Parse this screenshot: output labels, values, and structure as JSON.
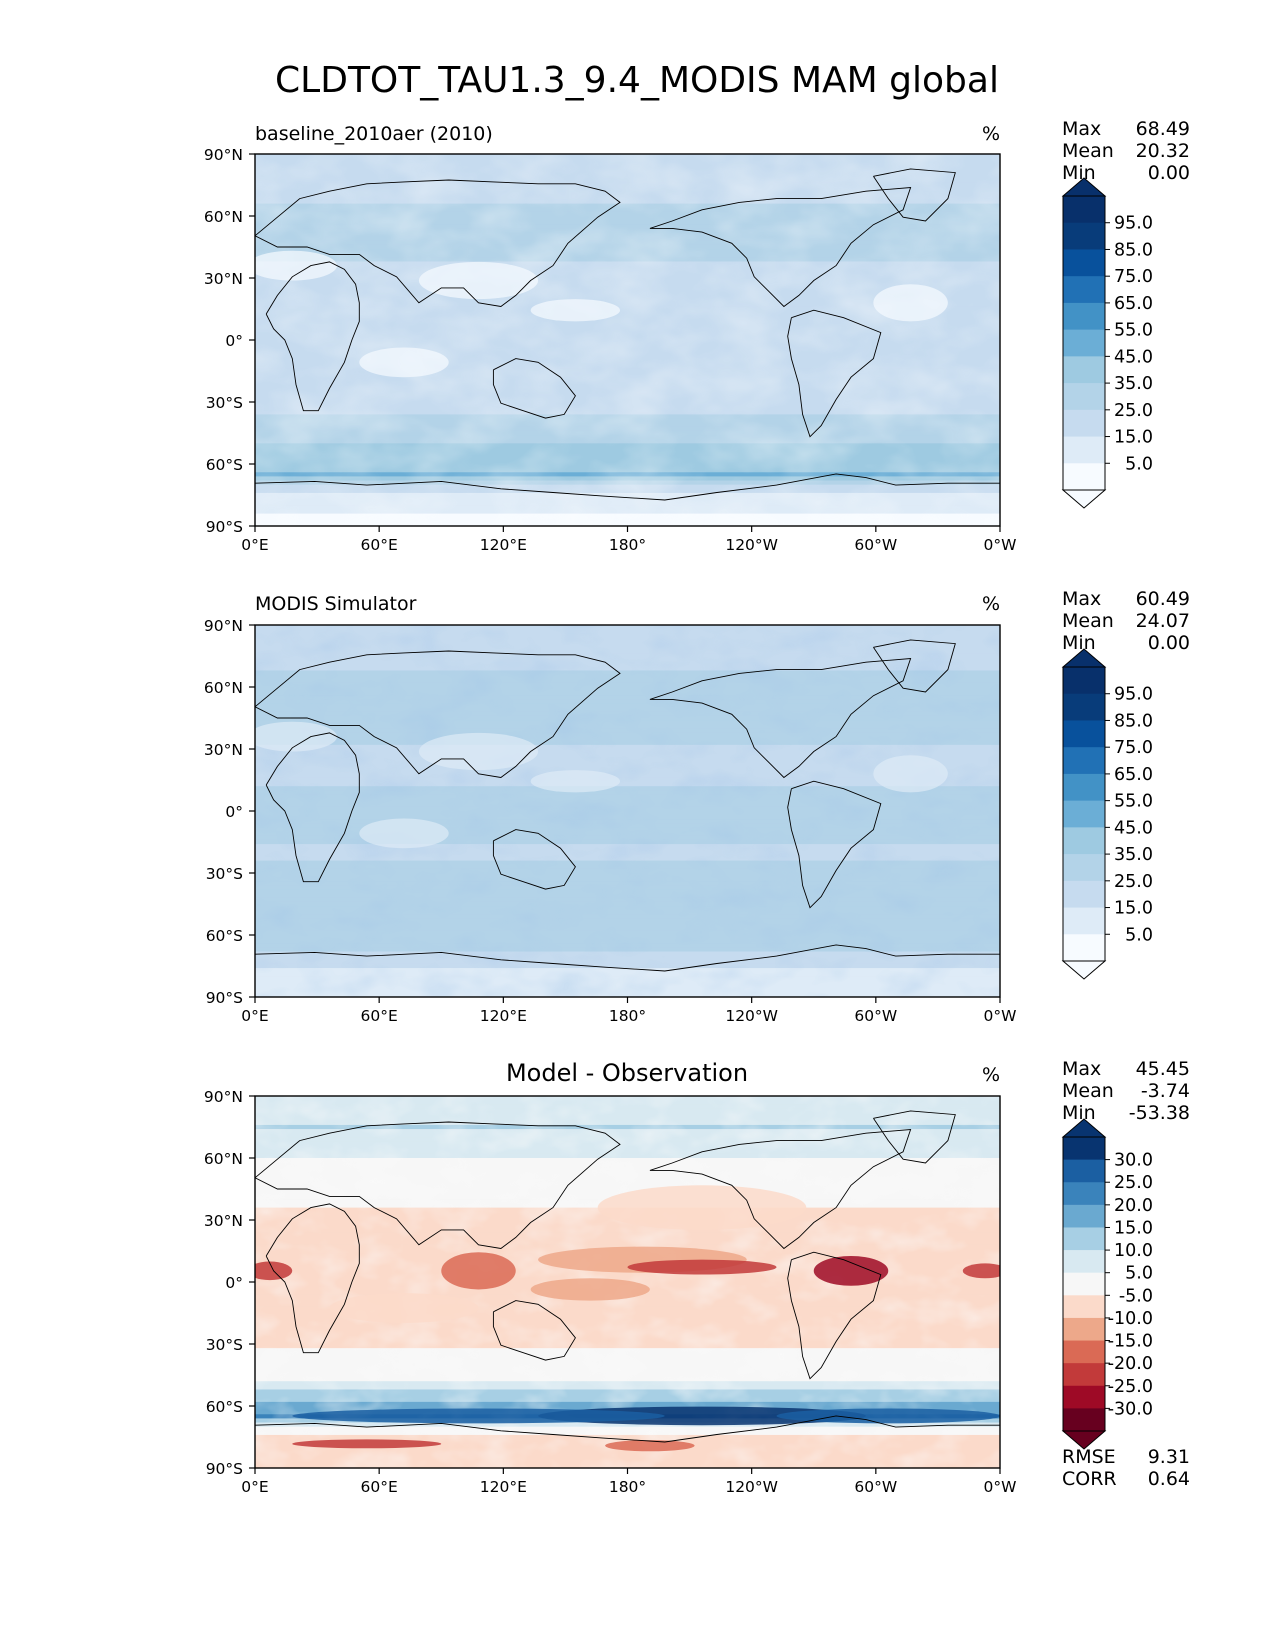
{
  "title": "CLDTOT_TAU1.3_9.4_MODIS MAM global",
  "colors": {
    "blues": [
      "#f7fbff",
      "#deebf7",
      "#c6dbef",
      "#b3d3e8",
      "#9ecae1",
      "#6baed6",
      "#4292c6",
      "#2171b5",
      "#08519c",
      "#083c7a",
      "#08306b"
    ],
    "rdbu": [
      "#67001f",
      "#9e0a26",
      "#c23a3a",
      "#da6a55",
      "#eda88a",
      "#fbdaca",
      "#f7f7f7",
      "#d8e9f1",
      "#a7cfe4",
      "#6aa9d0",
      "#3a83bb",
      "#1b5fa2",
      "#083470"
    ],
    "coast": "#000000",
    "frame": "#000000"
  },
  "chart_data": [
    {
      "type": "heatmap",
      "map": "global cylindrical",
      "title": "baseline_2010aer (2010)",
      "units": "%",
      "xticks": [
        "0°E",
        "60°E",
        "120°E",
        "180°",
        "120°W",
        "60°W",
        "0°W"
      ],
      "yticks": [
        "90°N",
        "60°N",
        "30°N",
        "0°",
        "30°S",
        "60°S",
        "90°S"
      ],
      "xlim": [
        0,
        360
      ],
      "ylim": [
        -90,
        90
      ],
      "stats": {
        "max_label": "Max",
        "max": "68.49",
        "mean_label": "Mean",
        "mean": "20.32",
        "min_label": "Min",
        "min": "0.00"
      },
      "colorbar": {
        "levels": [
          "95.0",
          "85.0",
          "75.0",
          "65.0",
          "55.0",
          "45.0",
          "35.0",
          "25.0",
          "15.0",
          "5.0"
        ],
        "extend": "both",
        "colormap": "Blues"
      },
      "zonal_profile": {
        "lat": [
          -90,
          -75,
          -65,
          -55,
          -45,
          -30,
          -20,
          -10,
          0,
          10,
          20,
          30,
          45,
          60,
          75,
          90
        ],
        "value": [
          3,
          8,
          45,
          40,
          30,
          22,
          18,
          20,
          25,
          22,
          15,
          18,
          30,
          28,
          20,
          15
        ]
      }
    },
    {
      "type": "heatmap",
      "map": "global cylindrical",
      "title": "MODIS Simulator",
      "units": "%",
      "xticks": [
        "0°E",
        "60°E",
        "120°E",
        "180°",
        "120°W",
        "60°W",
        "0°W"
      ],
      "yticks": [
        "90°N",
        "60°N",
        "30°N",
        "0°",
        "30°S",
        "60°S",
        "90°S"
      ],
      "xlim": [
        0,
        360
      ],
      "ylim": [
        -90,
        90
      ],
      "stats": {
        "max_label": "Max",
        "max": "60.49",
        "mean_label": "Mean",
        "mean": "24.07",
        "min_label": "Min",
        "min": "0.00"
      },
      "colorbar": {
        "levels": [
          "95.0",
          "85.0",
          "75.0",
          "65.0",
          "55.0",
          "45.0",
          "35.0",
          "25.0",
          "15.0",
          "5.0"
        ],
        "extend": "both",
        "colormap": "Blues"
      },
      "zonal_profile": {
        "lat": [
          -90,
          -75,
          -65,
          -55,
          -45,
          -30,
          -20,
          -10,
          0,
          10,
          20,
          30,
          45,
          60,
          75,
          90
        ],
        "value": [
          10,
          15,
          28,
          30,
          30,
          26,
          24,
          26,
          30,
          26,
          22,
          24,
          30,
          28,
          22,
          18
        ]
      }
    },
    {
      "type": "heatmap",
      "map": "global cylindrical",
      "title": "Model - Observation",
      "units": "%",
      "xticks": [
        "0°E",
        "60°E",
        "120°E",
        "180°",
        "120°W",
        "60°W",
        "0°W"
      ],
      "yticks": [
        "90°N",
        "60°N",
        "30°N",
        "0°",
        "30°S",
        "60°S",
        "90°S"
      ],
      "xlim": [
        0,
        360
      ],
      "ylim": [
        -90,
        90
      ],
      "stats": {
        "max_label": "Max",
        "max": "45.45",
        "mean_label": "Mean",
        "mean": "-3.74",
        "min_label": "Min",
        "min": "-53.38"
      },
      "colorbar": {
        "levels": [
          "30.0",
          "25.0",
          "20.0",
          "15.0",
          "10.0",
          "5.0",
          "-5.0",
          "-10.0",
          "-15.0",
          "-20.0",
          "-25.0",
          "-30.0"
        ],
        "extend": "both",
        "colormap": "RdBu"
      },
      "metrics": {
        "rmse_label": "RMSE",
        "rmse": "9.31",
        "corr_label": "CORR",
        "corr": "0.64"
      },
      "zonal_profile": {
        "lat": [
          -90,
          -75,
          -65,
          -55,
          -45,
          -30,
          -20,
          -10,
          0,
          10,
          20,
          30,
          45,
          60,
          75,
          90
        ],
        "value": [
          -8,
          -10,
          20,
          12,
          2,
          -6,
          -8,
          -6,
          -10,
          -8,
          -6,
          -8,
          0,
          5,
          10,
          8
        ]
      }
    }
  ]
}
